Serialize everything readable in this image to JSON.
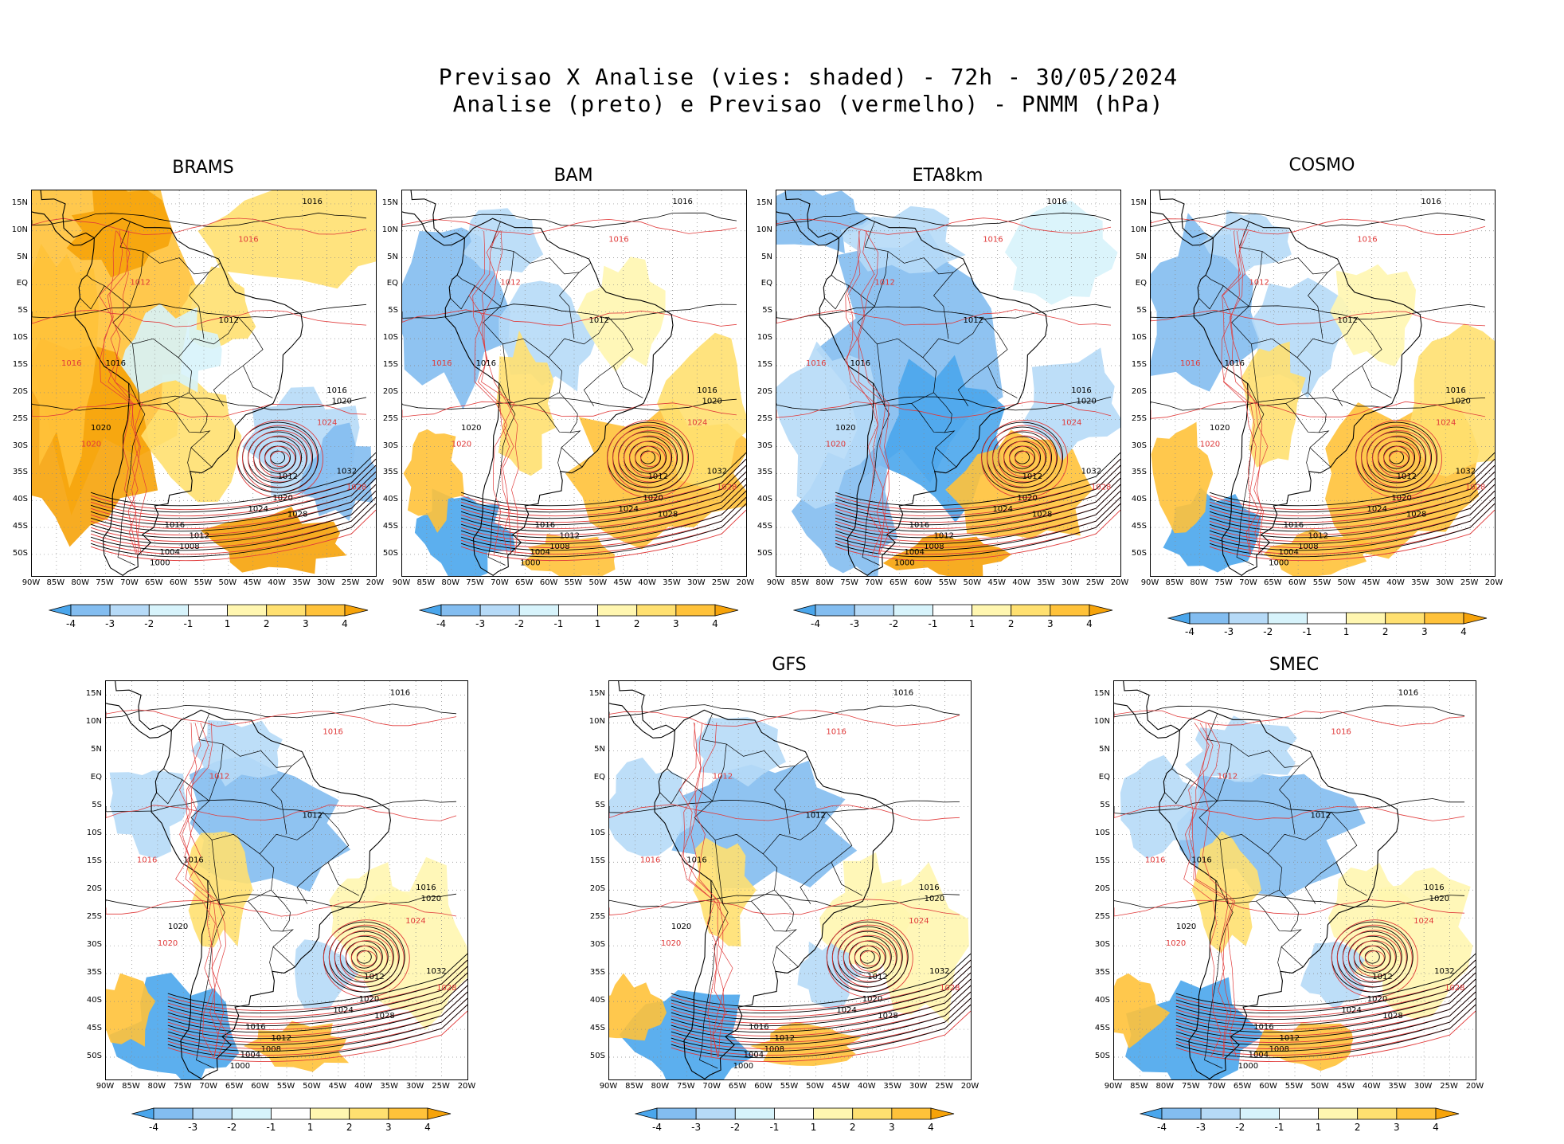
{
  "figure": {
    "title_line1": "Previsao X Analise (vies: shaded) - 72h - 30/05/2024",
    "title_line2": "Analise (preto) e Previsao (vermelho) - PNMM (hPa)"
  },
  "panels": [
    {
      "name": "BRAMS",
      "bias_style": "warm"
    },
    {
      "name": "BAM",
      "bias_style": "mixed"
    },
    {
      "name": "ETA8km",
      "bias_style": "cold"
    },
    {
      "name": "COSMO",
      "bias_style": "mixed"
    },
    {
      "name": "",
      "bias_style": "cool"
    },
    {
      "name": "GFS",
      "bias_style": "cool"
    },
    {
      "name": "SMEC",
      "bias_style": "cool"
    }
  ],
  "axes": {
    "lat_ticks": [
      "15N",
      "10N",
      "5N",
      "EQ",
      "5S",
      "10S",
      "15S",
      "20S",
      "25S",
      "30S",
      "35S",
      "40S",
      "45S",
      "50S"
    ],
    "lon_ticks": [
      "90W",
      "85W",
      "80W",
      "75W",
      "70W",
      "65W",
      "60W",
      "55W",
      "50W",
      "45W",
      "40W",
      "35W",
      "30W",
      "25W",
      "20W"
    ]
  },
  "colorbar": {
    "labels": [
      "-4",
      "-3",
      "-2",
      "-1",
      "1",
      "2",
      "3",
      "4"
    ],
    "colors": [
      "#4aa6ec",
      "#83bdf0",
      "#b6daf7",
      "#d7f3fb",
      "#ffffff",
      "#fff6b0",
      "#ffe070",
      "#ffc23a",
      "#f6a30a"
    ]
  },
  "contour_labels": {
    "analysis": [
      "1000",
      "1004",
      "1008",
      "1012",
      "1016",
      "1020",
      "1024",
      "1028",
      "1032"
    ],
    "forecast": [
      "1012",
      "1016",
      "1020",
      "1024",
      "1028"
    ]
  },
  "colors": {
    "analysis_line": "#000000",
    "forecast_line": "#e03a3a",
    "coast": "#000000",
    "grid": "#888888"
  }
}
